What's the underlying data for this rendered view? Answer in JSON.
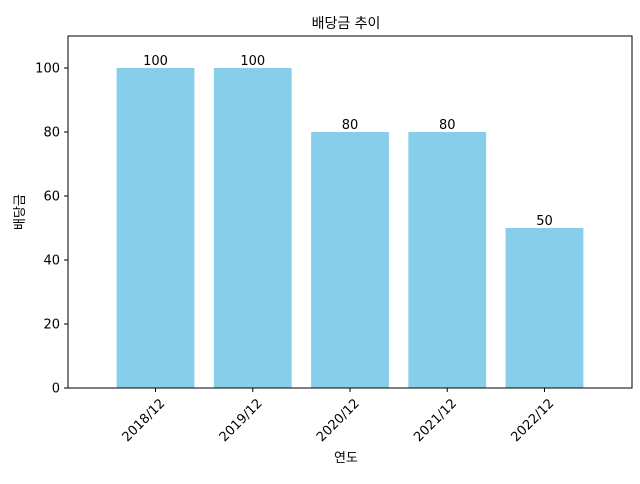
{
  "chart_data": {
    "type": "bar",
    "title": "배당금 추이",
    "xlabel": "연도",
    "ylabel": "배당금",
    "categories": [
      "2018/12",
      "2019/12",
      "2020/12",
      "2021/12",
      "2022/12"
    ],
    "values": [
      100,
      100,
      80,
      80,
      50
    ],
    "data_labels": [
      "100",
      "100",
      "80",
      "80",
      "50"
    ],
    "ylim": [
      0,
      110
    ],
    "yticks": [
      0,
      20,
      40,
      60,
      80,
      100
    ],
    "bar_color": "#87CEEB",
    "grid": false,
    "legend": "none",
    "xtick_rotation": "45deg"
  }
}
